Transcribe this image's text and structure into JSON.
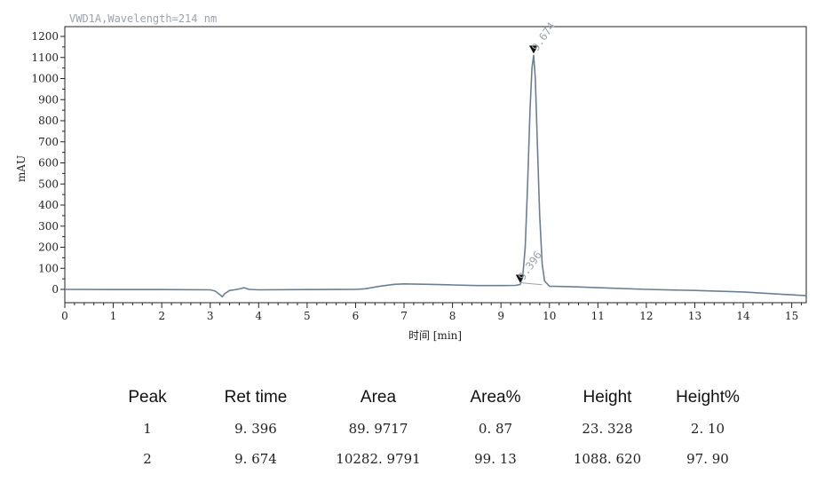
{
  "chart_data": {
    "type": "line",
    "title": "VWD1A,Wavelength=214 nm",
    "xlabel": "时间 [min]",
    "ylabel": "mAU",
    "xlim": [
      0,
      15.3
    ],
    "ylim": [
      -60,
      1220
    ],
    "x_ticks": [
      "0",
      "1",
      "2",
      "3",
      "4",
      "5",
      "6",
      "7",
      "8",
      "9",
      "10",
      "11",
      "12",
      "13",
      "14",
      "15"
    ],
    "y_ticks": [
      "0",
      "100",
      "200",
      "300",
      "400",
      "500",
      "600",
      "700",
      "800",
      "900",
      "1000",
      "1100",
      "1200"
    ],
    "series": [
      {
        "x": [
          0,
          1,
          2,
          3,
          3.1,
          3.2,
          3.25,
          3.3,
          3.4,
          3.5,
          3.6,
          3.7,
          3.8,
          4,
          5,
          6,
          6.2,
          6.5,
          6.8,
          7,
          7.5,
          8,
          8.5,
          9,
          9.3,
          9.396,
          9.45,
          9.5,
          9.55,
          9.6,
          9.64,
          9.674,
          9.71,
          9.75,
          9.8,
          9.85,
          9.9,
          10,
          10.5,
          11,
          12,
          13,
          14,
          15.3
        ],
        "y": [
          0,
          -1,
          -1,
          -2,
          -8,
          -25,
          -35,
          -20,
          -5,
          -2,
          2,
          8,
          0,
          -2,
          -1,
          0,
          3,
          15,
          24,
          26,
          24,
          21,
          18,
          18,
          19,
          23.3,
          60,
          200,
          500,
          850,
          1050,
          1110,
          1000,
          700,
          350,
          120,
          40,
          15,
          12,
          8,
          0,
          -5,
          -12,
          -30
        ]
      }
    ],
    "peaks": [
      {
        "label": "9.396",
        "x": 9.396,
        "y": 23.3
      },
      {
        "label": "9.674",
        "x": 9.674,
        "y": 1110
      }
    ]
  },
  "table": {
    "headers": [
      "Peak",
      "Ret time",
      "Area",
      "Area%",
      "Height",
      "Height%"
    ],
    "rows": [
      [
        "1",
        "9. 396",
        "89. 9717",
        "0. 87",
        "23. 328",
        "2. 10"
      ],
      [
        "2",
        "9. 674",
        "10282. 9791",
        "99. 13",
        "1088. 620",
        "97. 90"
      ]
    ]
  },
  "colors": {
    "trace": "#6b7f93",
    "baseline": "#9aa3ad",
    "axis": "#222222",
    "label": "#9aa3ad"
  }
}
